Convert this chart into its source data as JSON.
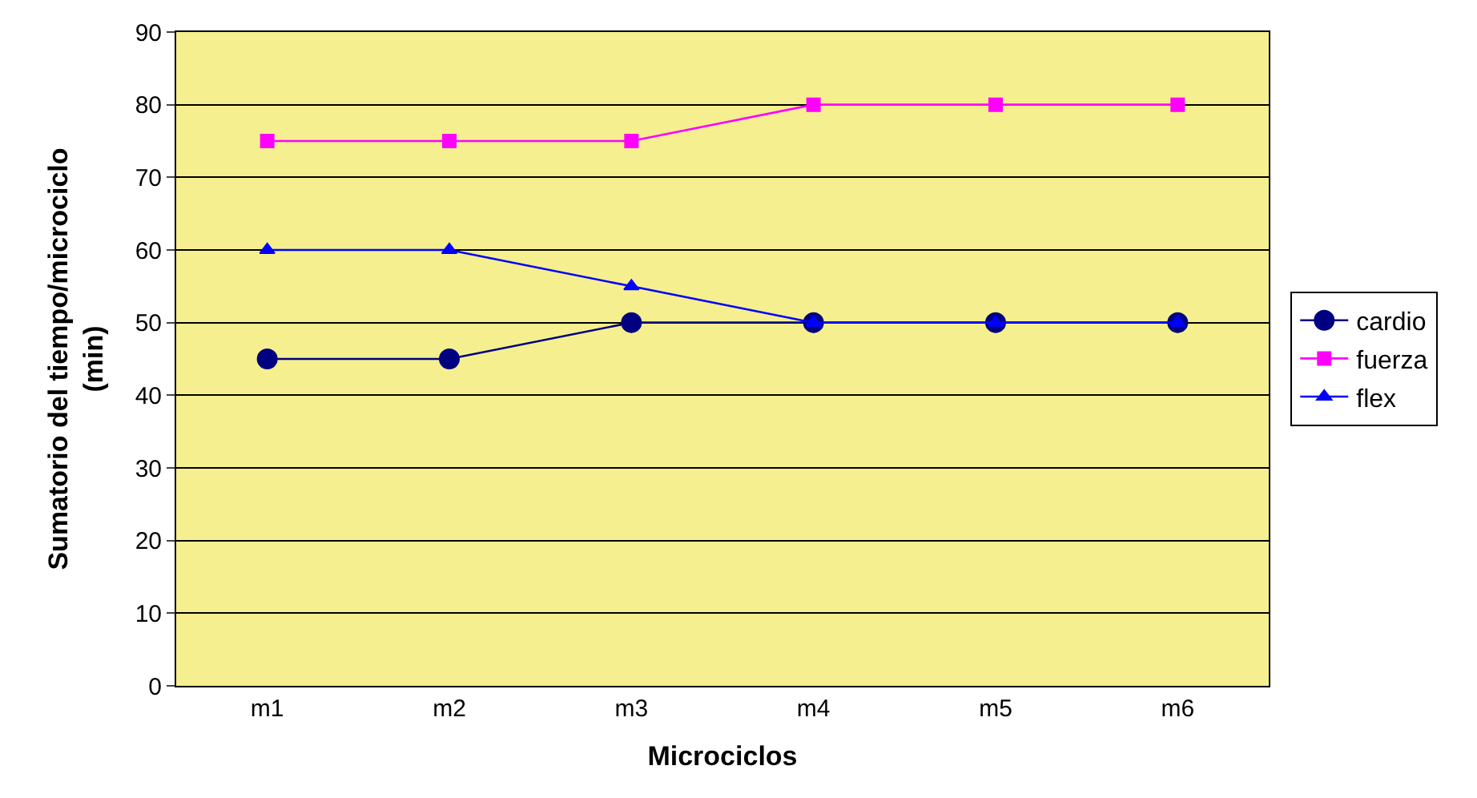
{
  "chart_data": {
    "type": "line",
    "xlabel": "Microciclos",
    "ylabel": "Sumatorio del tiempo/microciclo\n(min)",
    "categories": [
      "m1",
      "m2",
      "m3",
      "m4",
      "m5",
      "m6"
    ],
    "series": [
      {
        "name": "cardio",
        "color": "#000080",
        "marker": "circle",
        "values": [
          45,
          45,
          50,
          50,
          50,
          50
        ]
      },
      {
        "name": "fuerza",
        "color": "#ff00ff",
        "marker": "square",
        "values": [
          75,
          75,
          75,
          80,
          80,
          80
        ]
      },
      {
        "name": "flex",
        "color": "#0000ff",
        "marker": "triangle",
        "values": [
          60,
          60,
          55,
          50,
          50,
          50
        ]
      }
    ],
    "ylim": [
      0,
      90
    ],
    "yticks": [
      0,
      10,
      20,
      30,
      40,
      50,
      60,
      70,
      80,
      90
    ],
    "grid": "y",
    "legend": "right",
    "line_style": "solid"
  }
}
